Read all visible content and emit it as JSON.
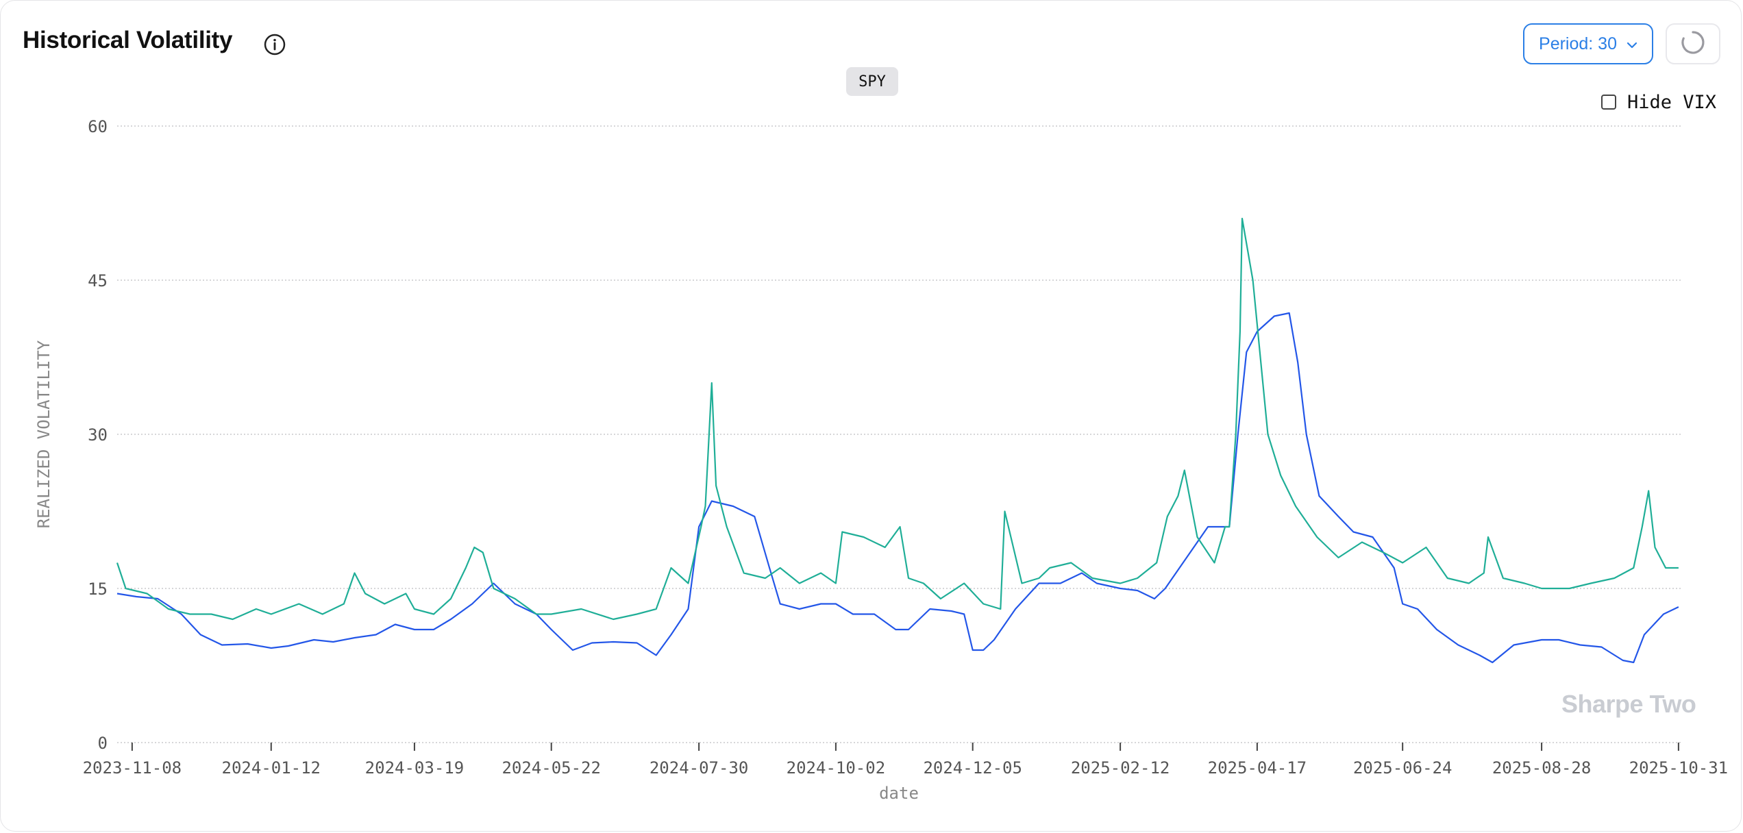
{
  "header": {
    "title": "Historical Volatility",
    "info_icon": "info-icon",
    "period_label": "Period: 30",
    "period_chevron_icon": "chevron-down-icon",
    "refresh_icon": "loading-spinner-icon"
  },
  "controls": {
    "symbol": "SPY",
    "hide_vix_label": "Hide VIX",
    "hide_vix_checked": false
  },
  "watermark": "Sharpe Two",
  "colors": {
    "realized_vol": "#2356e8",
    "vix": "#1fae97",
    "accent": "#2b7fe6",
    "grid": "#c8c8cc"
  },
  "chart_data": {
    "type": "line",
    "title": "",
    "xlabel": "date",
    "ylabel": "REALIZED VOLATILITY",
    "ylim": [
      0,
      60
    ],
    "yticks": [
      "0",
      "15",
      "30",
      "45",
      "60"
    ],
    "xlim": [
      "2023-11-01",
      "2025-11-01"
    ],
    "xticks": [
      "2023-11-08",
      "2024-01-12",
      "2024-03-19",
      "2024-05-22",
      "2024-07-30",
      "2024-10-02",
      "2024-12-05",
      "2025-02-12",
      "2025-04-17",
      "2025-06-24",
      "2025-08-28",
      "2025-10-31"
    ],
    "grid": "horizontal dotted",
    "series": [
      {
        "color": "#2356e8",
        "x": [
          "2023-11-01",
          "2023-11-10",
          "2023-11-20",
          "2023-12-01",
          "2023-12-10",
          "2023-12-20",
          "2024-01-01",
          "2024-01-12",
          "2024-01-20",
          "2024-02-01",
          "2024-02-10",
          "2024-02-20",
          "2024-03-01",
          "2024-03-10",
          "2024-03-19",
          "2024-03-28",
          "2024-04-05",
          "2024-04-15",
          "2024-04-25",
          "2024-05-05",
          "2024-05-15",
          "2024-05-22",
          "2024-06-01",
          "2024-06-10",
          "2024-06-20",
          "2024-07-01",
          "2024-07-10",
          "2024-07-17",
          "2024-07-25",
          "2024-07-30",
          "2024-08-05",
          "2024-08-15",
          "2024-08-25",
          "2024-09-01",
          "2024-09-06",
          "2024-09-15",
          "2024-09-25",
          "2024-10-02",
          "2024-10-10",
          "2024-10-20",
          "2024-10-30",
          "2024-11-05",
          "2024-11-15",
          "2024-11-25",
          "2024-12-01",
          "2024-12-05",
          "2024-12-10",
          "2024-12-15",
          "2024-12-25",
          "2025-01-05",
          "2025-01-15",
          "2025-01-25",
          "2025-02-01",
          "2025-02-12",
          "2025-02-20",
          "2025-02-28",
          "2025-03-05",
          "2025-03-15",
          "2025-03-25",
          "2025-04-04",
          "2025-04-08",
          "2025-04-12",
          "2025-04-17",
          "2025-04-25",
          "2025-05-02",
          "2025-05-06",
          "2025-05-10",
          "2025-05-16",
          "2025-05-25",
          "2025-06-01",
          "2025-06-10",
          "2025-06-20",
          "2025-06-24",
          "2025-07-01",
          "2025-07-10",
          "2025-07-20",
          "2025-07-30",
          "2025-08-05",
          "2025-08-15",
          "2025-08-28",
          "2025-09-05",
          "2025-09-15",
          "2025-09-25",
          "2025-10-05",
          "2025-10-10",
          "2025-10-15",
          "2025-10-24",
          "2025-10-31"
        ],
        "y": [
          14.5,
          14.2,
          14.0,
          12.5,
          10.5,
          9.5,
          9.6,
          9.2,
          9.4,
          10.0,
          9.8,
          10.2,
          10.5,
          11.5,
          11.0,
          11.0,
          12.0,
          13.5,
          15.5,
          13.5,
          12.5,
          11.0,
          9.0,
          9.7,
          9.8,
          9.7,
          8.5,
          10.5,
          13.0,
          21.0,
          23.5,
          23.0,
          22.0,
          17.0,
          13.5,
          13.0,
          13.5,
          13.5,
          12.5,
          12.5,
          11.0,
          11.0,
          13.0,
          12.8,
          12.5,
          9.0,
          9.0,
          10.0,
          13.0,
          15.5,
          15.5,
          16.5,
          15.5,
          15.0,
          14.8,
          14.0,
          15.0,
          18.0,
          21.0,
          21.0,
          30.0,
          38.0,
          40.0,
          41.5,
          41.8,
          37.0,
          30.0,
          24.0,
          22.0,
          20.5,
          20.0,
          17.0,
          13.5,
          13.0,
          11.0,
          9.5,
          8.5,
          7.8,
          9.5,
          10.0,
          10.0,
          9.5,
          9.3,
          8.0,
          7.8,
          10.5,
          12.5,
          13.2
        ]
      },
      {
        "color": "#1fae97",
        "x": [
          "2023-11-01",
          "2023-11-05",
          "2023-11-15",
          "2023-11-25",
          "2023-12-05",
          "2023-12-15",
          "2023-12-25",
          "2024-01-05",
          "2024-01-12",
          "2024-01-25",
          "2024-02-05",
          "2024-02-15",
          "2024-02-20",
          "2024-02-25",
          "2024-03-05",
          "2024-03-15",
          "2024-03-19",
          "2024-03-28",
          "2024-04-05",
          "2024-04-12",
          "2024-04-16",
          "2024-04-20",
          "2024-04-25",
          "2024-05-05",
          "2024-05-15",
          "2024-05-22",
          "2024-06-05",
          "2024-06-20",
          "2024-07-01",
          "2024-07-10",
          "2024-07-17",
          "2024-07-25",
          "2024-07-31",
          "2024-08-02",
          "2024-08-05",
          "2024-08-07",
          "2024-08-12",
          "2024-08-20",
          "2024-08-30",
          "2024-09-06",
          "2024-09-15",
          "2024-09-25",
          "2024-10-02",
          "2024-10-05",
          "2024-10-15",
          "2024-10-25",
          "2024-11-01",
          "2024-11-05",
          "2024-11-12",
          "2024-11-20",
          "2024-12-01",
          "2024-12-10",
          "2024-12-18",
          "2024-12-20",
          "2024-12-28",
          "2025-01-05",
          "2025-01-10",
          "2025-01-20",
          "2025-01-30",
          "2025-02-12",
          "2025-02-20",
          "2025-03-01",
          "2025-03-06",
          "2025-03-11",
          "2025-03-14",
          "2025-03-20",
          "2025-03-28",
          "2025-04-02",
          "2025-04-04",
          "2025-04-07",
          "2025-04-09",
          "2025-04-10",
          "2025-04-15",
          "2025-04-22",
          "2025-04-28",
          "2025-05-05",
          "2025-05-15",
          "2025-05-25",
          "2025-06-05",
          "2025-06-15",
          "2025-06-24",
          "2025-07-05",
          "2025-07-15",
          "2025-07-25",
          "2025-08-01",
          "2025-08-03",
          "2025-08-10",
          "2025-08-20",
          "2025-08-28",
          "2025-09-10",
          "2025-09-20",
          "2025-10-01",
          "2025-10-10",
          "2025-10-14",
          "2025-10-17",
          "2025-10-20",
          "2025-10-25",
          "2025-10-31"
        ],
        "y": [
          17.5,
          15.0,
          14.5,
          13.0,
          12.5,
          12.5,
          12.0,
          13.0,
          12.5,
          13.5,
          12.5,
          13.5,
          16.5,
          14.5,
          13.5,
          14.5,
          13.0,
          12.5,
          14.0,
          17.0,
          19.0,
          18.5,
          15.0,
          14.0,
          12.5,
          12.5,
          13.0,
          12.0,
          12.5,
          13.0,
          17.0,
          15.5,
          21.0,
          23.0,
          35.0,
          25.0,
          21.0,
          16.5,
          16.0,
          17.0,
          15.5,
          16.5,
          15.5,
          20.5,
          20.0,
          19.0,
          21.0,
          16.0,
          15.5,
          14.0,
          15.5,
          13.5,
          13.0,
          22.5,
          15.5,
          16.0,
          17.0,
          17.5,
          16.0,
          15.5,
          16.0,
          17.5,
          22.0,
          24.0,
          26.5,
          20.0,
          17.5,
          21.0,
          21.0,
          30.0,
          40.0,
          51.0,
          45.0,
          30.0,
          26.0,
          23.0,
          20.0,
          18.0,
          19.5,
          18.5,
          17.5,
          19.0,
          16.0,
          15.5,
          16.5,
          20.0,
          16.0,
          15.5,
          15.0,
          15.0,
          15.5,
          16.0,
          17.0,
          21.0,
          24.5,
          19.0,
          17.0,
          17.0
        ]
      }
    ]
  }
}
